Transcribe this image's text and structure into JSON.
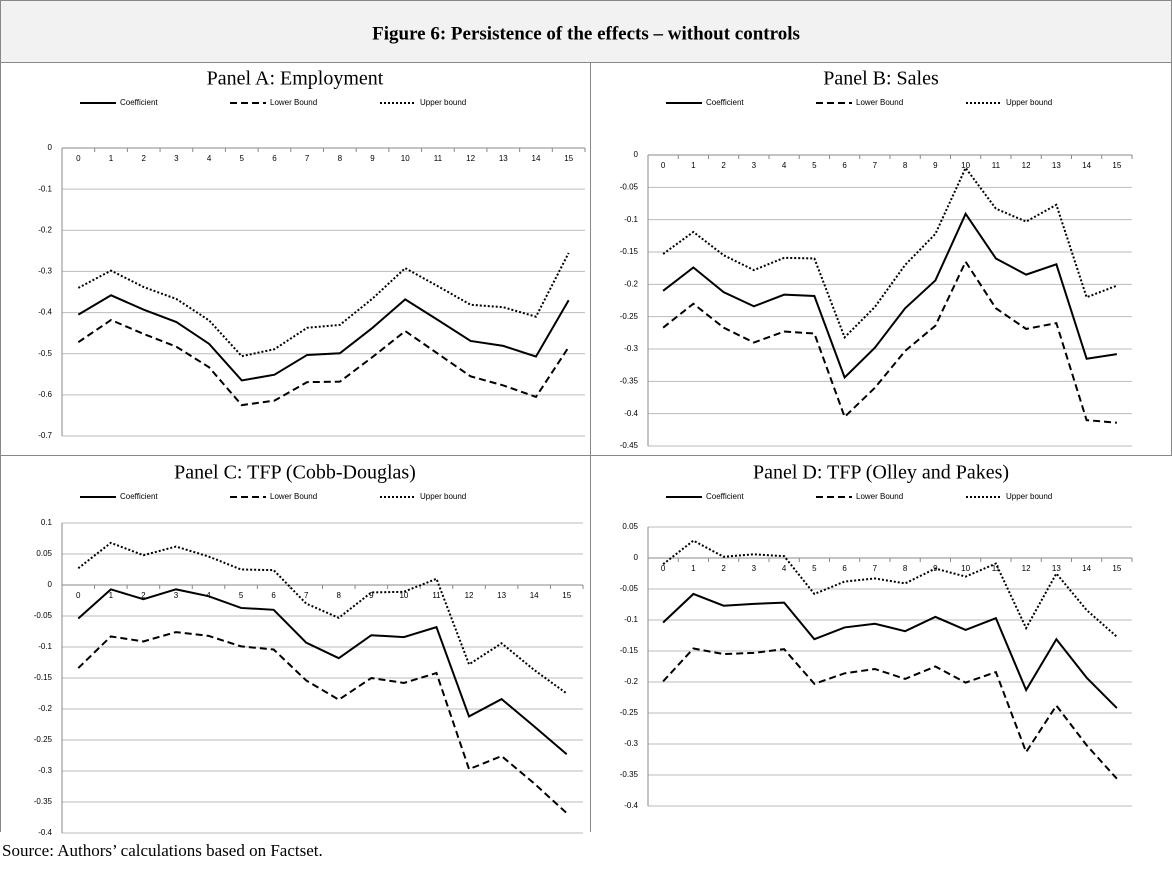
{
  "figure_title": "Figure 6: Persistence of the effects – without controls",
  "source": "Source: Authors’ calculations based on Factset.",
  "chart_data": [
    {
      "type": "line",
      "title": "Panel A: Employment",
      "categories": [
        "0",
        "1",
        "2",
        "3",
        "4",
        "5",
        "6",
        "7",
        "8",
        "9",
        "10",
        "11",
        "12",
        "13",
        "14",
        "15"
      ],
      "ylim": [
        -0.7,
        0
      ],
      "yticks": [
        0,
        -0.1,
        -0.2,
        -0.3,
        -0.4,
        -0.5,
        -0.6,
        -0.7
      ],
      "grid": true,
      "legend": "top",
      "series": [
        {
          "name": "Coefficient",
          "color": "#000000",
          "dash": "solid",
          "values": [
            -0.405,
            -0.358,
            -0.393,
            -0.423,
            -0.476,
            -0.565,
            -0.551,
            -0.503,
            -0.499,
            -0.437,
            -0.368,
            -0.418,
            -0.469,
            -0.481,
            -0.507,
            -0.37
          ]
        },
        {
          "name": "Lower Bound",
          "color": "#000000",
          "dash": "dashed",
          "values": [
            -0.472,
            -0.418,
            -0.452,
            -0.483,
            -0.533,
            -0.625,
            -0.614,
            -0.569,
            -0.568,
            -0.508,
            -0.445,
            -0.5,
            -0.555,
            -0.577,
            -0.605,
            -0.484
          ]
        },
        {
          "name": "Upper bound",
          "color": "#000000",
          "dash": "dotted",
          "values": [
            -0.34,
            -0.298,
            -0.338,
            -0.367,
            -0.419,
            -0.506,
            -0.489,
            -0.437,
            -0.43,
            -0.366,
            -0.292,
            -0.336,
            -0.381,
            -0.387,
            -0.41,
            -0.255
          ]
        }
      ]
    },
    {
      "type": "line",
      "title": "Panel B: Sales",
      "categories": [
        "0",
        "1",
        "2",
        "3",
        "4",
        "5",
        "6",
        "7",
        "8",
        "9",
        "10",
        "11",
        "12",
        "13",
        "14",
        "15"
      ],
      "ylim": [
        -0.45,
        0
      ],
      "yticks": [
        0,
        -0.05,
        -0.1,
        -0.15,
        -0.2,
        -0.25,
        -0.3,
        -0.35,
        -0.4,
        -0.45
      ],
      "grid": true,
      "legend": "top",
      "series": [
        {
          "name": "Coefficient",
          "color": "#000000",
          "dash": "solid",
          "values": [
            -0.21,
            -0.174,
            -0.212,
            -0.234,
            -0.216,
            -0.218,
            -0.344,
            -0.298,
            -0.237,
            -0.194,
            -0.091,
            -0.16,
            -0.185,
            -0.169,
            -0.315,
            -0.308
          ]
        },
        {
          "name": "Lower Bound",
          "color": "#000000",
          "dash": "dashed",
          "values": [
            -0.267,
            -0.23,
            -0.267,
            -0.29,
            -0.273,
            -0.276,
            -0.405,
            -0.36,
            -0.303,
            -0.264,
            -0.165,
            -0.237,
            -0.269,
            -0.26,
            -0.41,
            -0.414
          ]
        },
        {
          "name": "Upper bound",
          "color": "#000000",
          "dash": "dotted",
          "values": [
            -0.153,
            -0.119,
            -0.155,
            -0.178,
            -0.159,
            -0.16,
            -0.282,
            -0.235,
            -0.17,
            -0.122,
            -0.02,
            -0.083,
            -0.103,
            -0.077,
            -0.22,
            -0.202
          ]
        }
      ]
    },
    {
      "type": "line",
      "title": "Panel C: TFP (Cobb-Douglas)",
      "categories": [
        "0",
        "1",
        "2",
        "3",
        "4",
        "5",
        "6",
        "7",
        "8",
        "9",
        "10",
        "11",
        "12",
        "13",
        "14",
        "15"
      ],
      "ylim": [
        -0.4,
        0.1
      ],
      "yticks": [
        0.1,
        0.05,
        0,
        -0.05,
        -0.1,
        -0.15,
        -0.2,
        -0.25,
        -0.3,
        -0.35,
        -0.4
      ],
      "grid": true,
      "legend": "top",
      "series": [
        {
          "name": "Coefficient",
          "color": "#000000",
          "dash": "solid",
          "values": [
            -0.054,
            -0.007,
            -0.023,
            -0.007,
            -0.018,
            -0.037,
            -0.04,
            -0.093,
            -0.118,
            -0.081,
            -0.084,
            -0.068,
            -0.212,
            -0.184,
            -0.228,
            -0.273
          ]
        },
        {
          "name": "Lower Bound",
          "color": "#000000",
          "dash": "dashed",
          "values": [
            -0.134,
            -0.083,
            -0.091,
            -0.076,
            -0.082,
            -0.099,
            -0.104,
            -0.154,
            -0.185,
            -0.15,
            -0.158,
            -0.142,
            -0.297,
            -0.276,
            -0.32,
            -0.368
          ]
        },
        {
          "name": "Upper bound",
          "color": "#000000",
          "dash": "dotted",
          "values": [
            0.027,
            0.068,
            0.048,
            0.062,
            0.046,
            0.025,
            0.024,
            -0.03,
            -0.053,
            -0.012,
            -0.011,
            0.01,
            -0.128,
            -0.094,
            -0.137,
            -0.175
          ]
        }
      ]
    },
    {
      "type": "line",
      "title": "Panel D: TFP (Olley and Pakes)",
      "categories": [
        "0",
        "1",
        "2",
        "3",
        "4",
        "5",
        "6",
        "7",
        "8",
        "9",
        "10",
        "11",
        "12",
        "13",
        "14",
        "15"
      ],
      "ylim": [
        -0.4,
        0.05
      ],
      "yticks": [
        0.05,
        0,
        -0.05,
        -0.1,
        -0.15,
        -0.2,
        -0.25,
        -0.3,
        -0.35,
        -0.4
      ],
      "grid": true,
      "legend": "top",
      "series": [
        {
          "name": "Coefficient",
          "color": "#000000",
          "dash": "solid",
          "values": [
            -0.104,
            -0.058,
            -0.077,
            -0.074,
            -0.072,
            -0.131,
            -0.112,
            -0.106,
            -0.118,
            -0.095,
            -0.116,
            -0.097,
            -0.213,
            -0.131,
            -0.193,
            -0.242
          ]
        },
        {
          "name": "Lower Bound",
          "color": "#000000",
          "dash": "dashed",
          "values": [
            -0.199,
            -0.146,
            -0.155,
            -0.153,
            -0.147,
            -0.203,
            -0.186,
            -0.179,
            -0.195,
            -0.175,
            -0.201,
            -0.184,
            -0.313,
            -0.238,
            -0.302,
            -0.356
          ]
        },
        {
          "name": "Upper bound",
          "color": "#000000",
          "dash": "dotted",
          "values": [
            -0.01,
            0.028,
            0.002,
            0.006,
            0.003,
            -0.058,
            -0.038,
            -0.033,
            -0.041,
            -0.017,
            -0.03,
            -0.009,
            -0.113,
            -0.025,
            -0.084,
            -0.127
          ]
        }
      ]
    }
  ]
}
